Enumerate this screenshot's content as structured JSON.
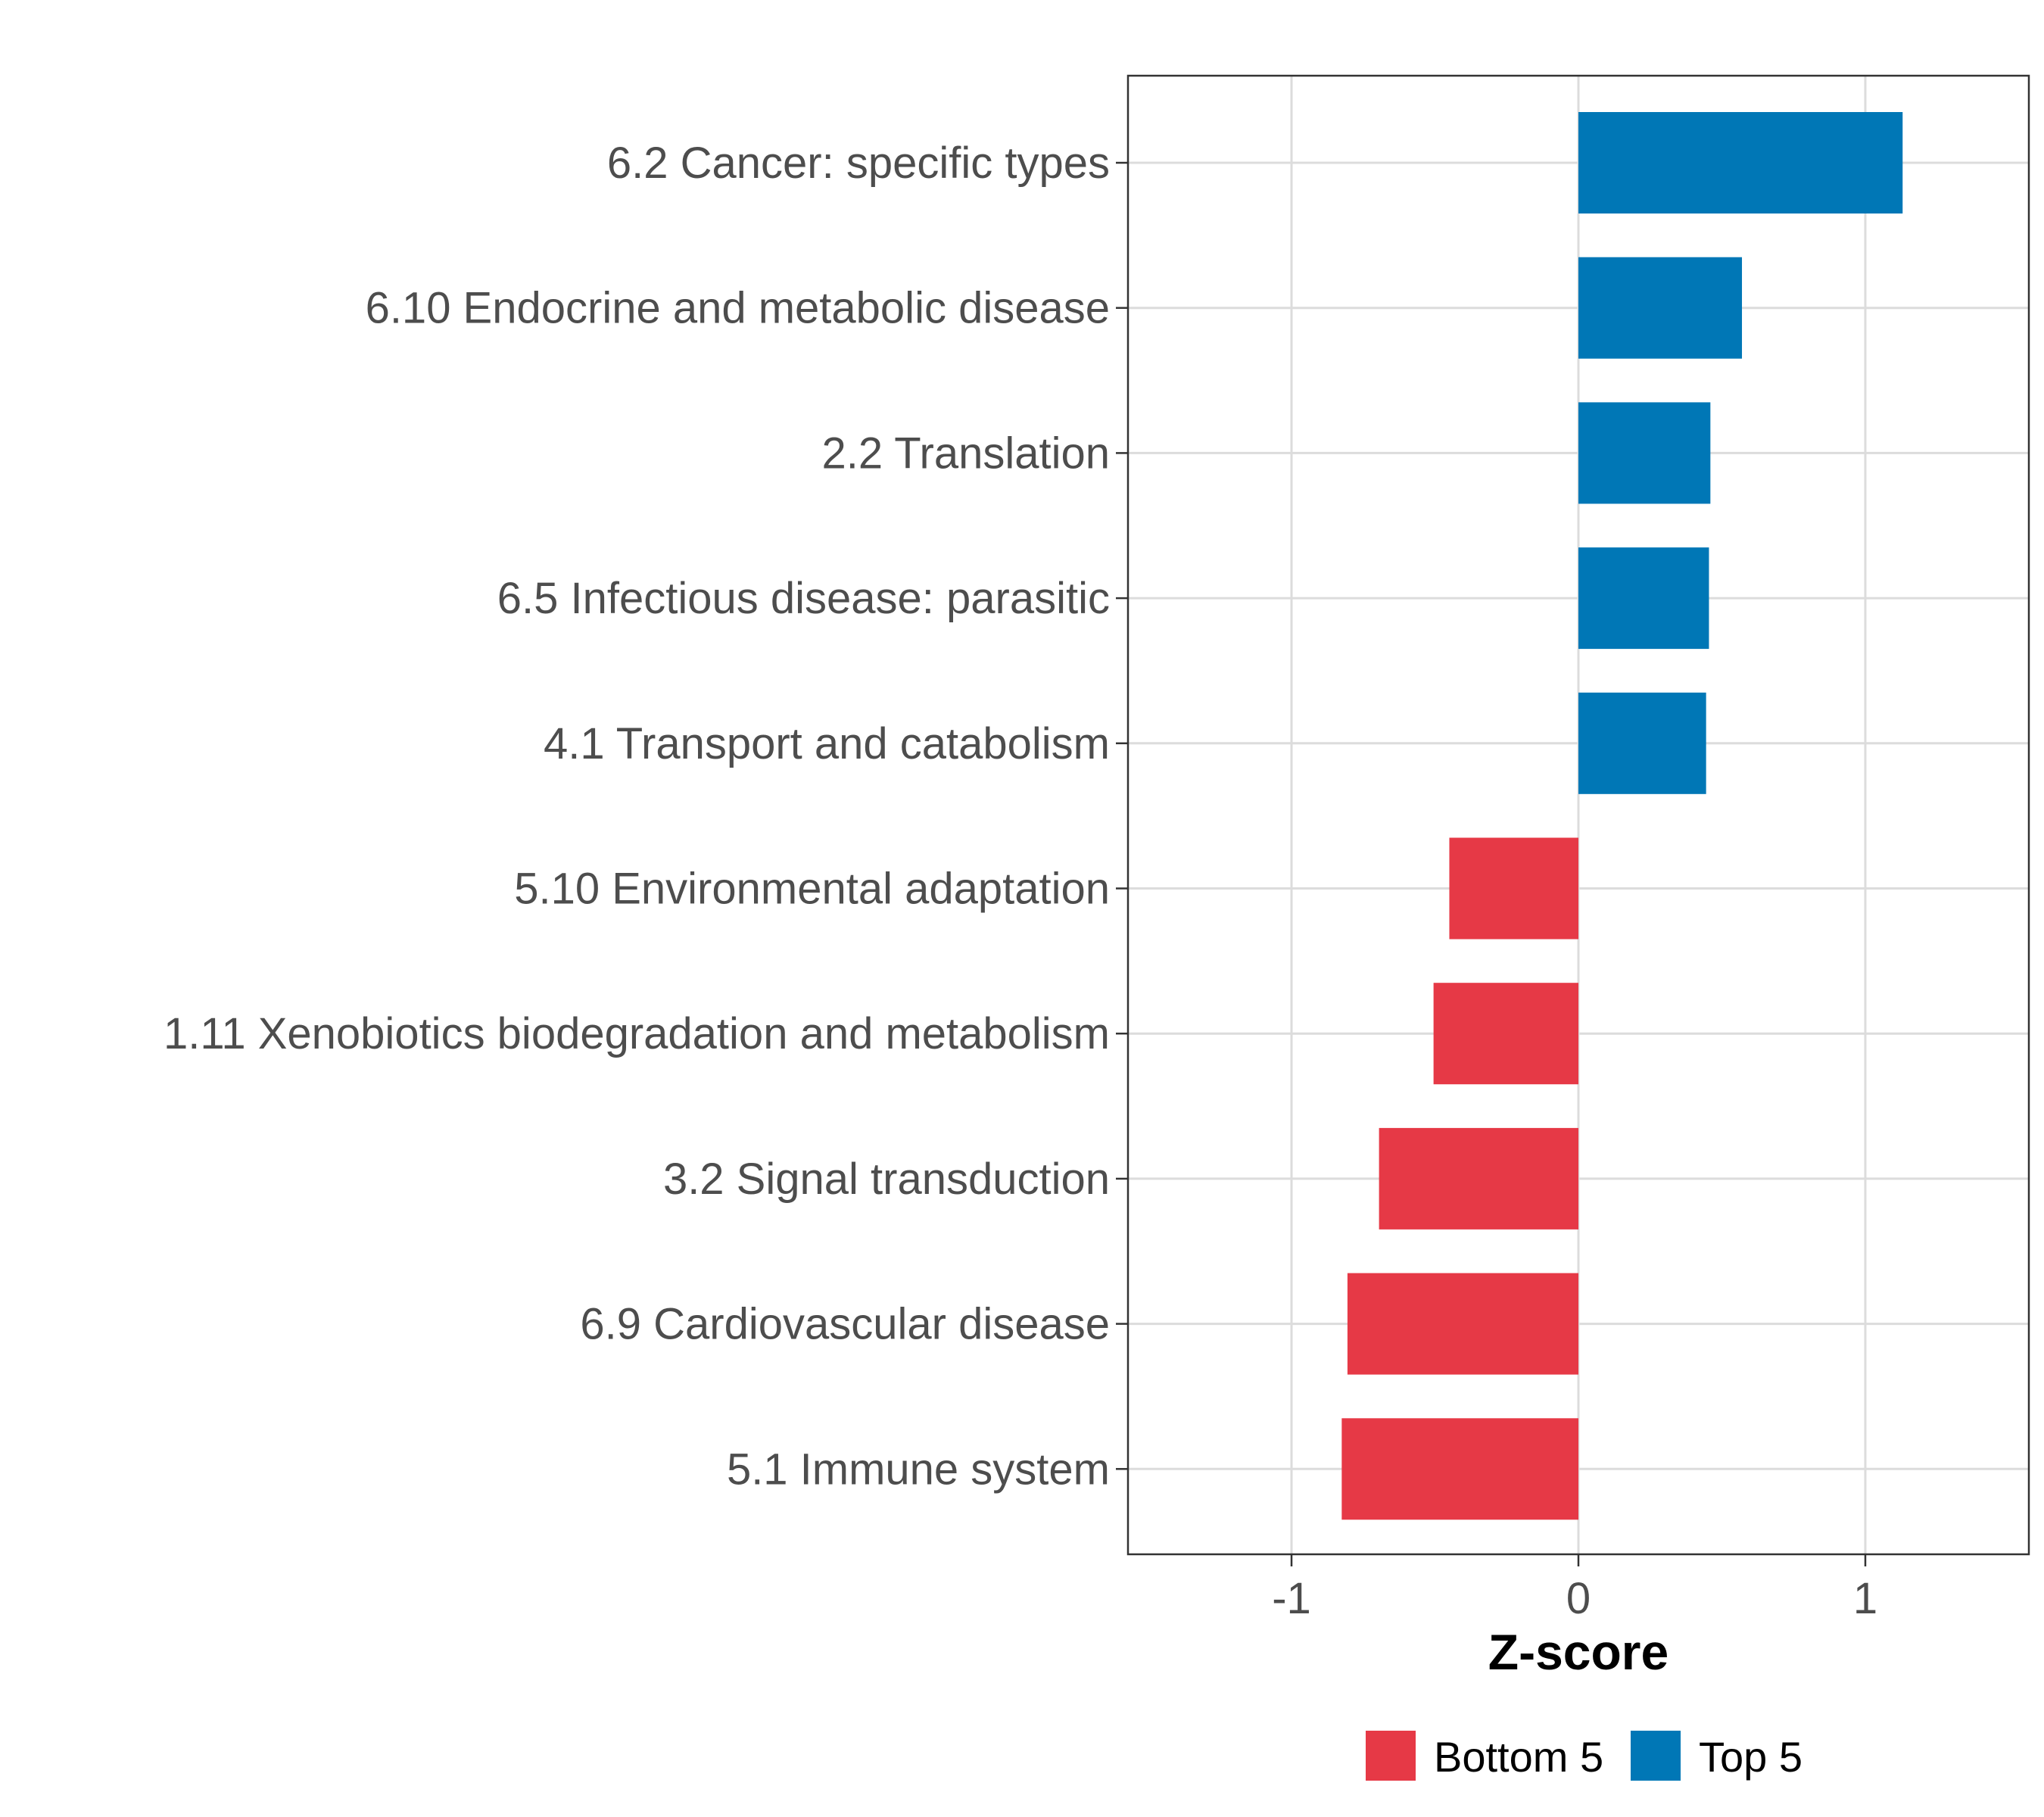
{
  "chart_data": {
    "type": "bar",
    "orientation": "horizontal",
    "categories": [
      "6.2 Cancer: specific types",
      "6.10 Endocrine and metabolic disease",
      "2.2 Translation",
      "6.5 Infectious disease: parasitic",
      "4.1 Transport and catabolism",
      "5.10 Environmental adaptation",
      "1.11 Xenobiotics biodegradation and metabolism",
      "3.2 Signal transduction",
      "6.9 Cardiovascular disease",
      "5.1 Immune system"
    ],
    "values": [
      1.13,
      0.57,
      0.46,
      0.455,
      0.445,
      -0.45,
      -0.505,
      -0.695,
      -0.805,
      -0.825
    ],
    "groups": [
      "Top 5",
      "Top 5",
      "Top 5",
      "Top 5",
      "Top 5",
      "Bottom 5",
      "Bottom 5",
      "Bottom 5",
      "Bottom 5",
      "Bottom 5"
    ],
    "xlabel": "Z-score",
    "ylabel": "",
    "xlim": [
      -1.57,
      1.57
    ],
    "xticks": [
      {
        "value": -1,
        "label": "-1"
      },
      {
        "value": 0,
        "label": "0"
      },
      {
        "value": 1,
        "label": "1"
      }
    ],
    "grid": true,
    "legend": {
      "placement": "bottom",
      "items": [
        {
          "label": "Bottom 5",
          "color": "#e63946"
        },
        {
          "label": "Top 5",
          "color": "#0077b6"
        }
      ]
    },
    "colors": {
      "Top 5": "#0077b6",
      "Bottom 5": "#e63946"
    }
  }
}
